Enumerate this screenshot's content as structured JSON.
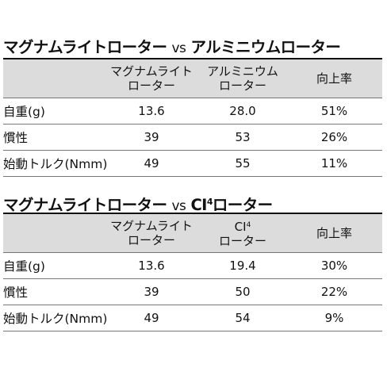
{
  "tables": [
    {
      "title_main": "マグナムライトローター",
      "title_vs": "vs",
      "title_rival": "アルミニウムローター",
      "title_rival_sup": "",
      "headers": {
        "col1_line1": "マグナムライト",
        "col1_line2": "ローター",
        "col2_line1": "アルミニウム",
        "col2_line1_sup": "",
        "col2_line2": "ローター",
        "col3": "向上率"
      },
      "rows": [
        {
          "label": "自重(g)",
          "v1": "13.6",
          "v2": "28.0",
          "v3": "51%"
        },
        {
          "label": "慣性",
          "v1": "39",
          "v2": "53",
          "v3": "26%"
        },
        {
          "label": "始動トルク(Nmm)",
          "v1": "49",
          "v2": "55",
          "v3": "11%"
        }
      ]
    },
    {
      "title_main": "マグナムライトローター",
      "title_vs": "vs",
      "title_rival": "CI",
      "title_rival_sup": "4",
      "title_rival_tail": "ローター",
      "headers": {
        "col1_line1": "マグナムライト",
        "col1_line2": "ローター",
        "col2_line1": "CI",
        "col2_line1_sup": "4",
        "col2_line2": "ローター",
        "col3": "向上率"
      },
      "rows": [
        {
          "label": "自重(g)",
          "v1": "13.6",
          "v2": "19.4",
          "v3": "30%"
        },
        {
          "label": "慣性",
          "v1": "39",
          "v2": "50",
          "v3": "22%"
        },
        {
          "label": "始動トルク(Nmm)",
          "v1": "49",
          "v2": "54",
          "v3": "9%"
        }
      ]
    }
  ]
}
